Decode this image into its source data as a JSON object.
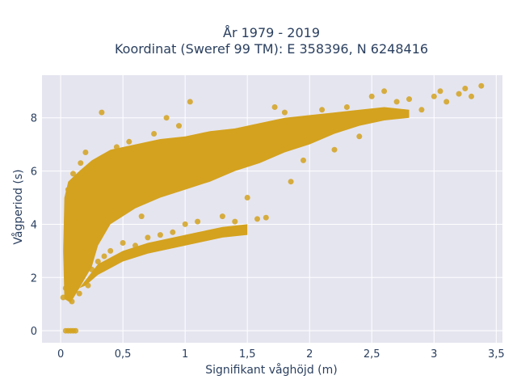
{
  "chart_data": {
    "type": "scatter",
    "title_line1": "År 1979 - 2019",
    "title_line2": "Koordinat (Sweref 99 TM): E 358396, N 6248416",
    "xlabel": "Signifikant våghöjd (m)",
    "ylabel": "Vågperiod (s)",
    "xlim": [
      -0.15,
      3.55
    ],
    "ylim": [
      -0.45,
      9.6
    ],
    "x_ticks": [
      0,
      0.5,
      1,
      1.5,
      2,
      2.5,
      3,
      3.5
    ],
    "x_tick_labels": [
      "0",
      "0,5",
      "1",
      "1,5",
      "2",
      "2,5",
      "3",
      "3,5"
    ],
    "y_ticks": [
      0,
      2,
      4,
      6,
      8
    ],
    "y_tick_labels": [
      "0",
      "2",
      "4",
      "6",
      "8"
    ],
    "grid": true,
    "background": "#e5e5f0",
    "marker_color": "#d4a21e",
    "points": [
      {
        "x": 0.02,
        "y": 1.25
      },
      {
        "x": 0.04,
        "y": 1.6
      },
      {
        "x": 0.06,
        "y": 2.2
      },
      {
        "x": 0.05,
        "y": 3.0
      },
      {
        "x": 0.07,
        "y": 3.8
      },
      {
        "x": 0.08,
        "y": 4.6
      },
      {
        "x": 0.06,
        "y": 5.3
      },
      {
        "x": 0.1,
        "y": 5.9
      },
      {
        "x": 0.09,
        "y": 1.1
      },
      {
        "x": 0.15,
        "y": 1.4
      },
      {
        "x": 0.12,
        "y": 2.6
      },
      {
        "x": 0.14,
        "y": 4.2
      },
      {
        "x": 0.16,
        "y": 6.3
      },
      {
        "x": 0.2,
        "y": 6.7
      },
      {
        "x": 0.22,
        "y": 1.7
      },
      {
        "x": 0.25,
        "y": 2.3
      },
      {
        "x": 0.28,
        "y": 5.0
      },
      {
        "x": 0.3,
        "y": 2.6
      },
      {
        "x": 0.35,
        "y": 2.8
      },
      {
        "x": 0.33,
        "y": 8.2
      },
      {
        "x": 0.4,
        "y": 3.0
      },
      {
        "x": 0.45,
        "y": 6.9
      },
      {
        "x": 0.5,
        "y": 3.3
      },
      {
        "x": 0.55,
        "y": 7.1
      },
      {
        "x": 0.6,
        "y": 3.2
      },
      {
        "x": 0.65,
        "y": 4.3
      },
      {
        "x": 0.7,
        "y": 3.5
      },
      {
        "x": 0.75,
        "y": 7.4
      },
      {
        "x": 0.8,
        "y": 3.6
      },
      {
        "x": 0.85,
        "y": 8.0
      },
      {
        "x": 0.9,
        "y": 3.7
      },
      {
        "x": 0.95,
        "y": 7.7
      },
      {
        "x": 1.0,
        "y": 4.0
      },
      {
        "x": 1.04,
        "y": 8.6
      },
      {
        "x": 1.1,
        "y": 4.1
      },
      {
        "x": 1.2,
        "y": 3.6
      },
      {
        "x": 1.3,
        "y": 4.3
      },
      {
        "x": 1.4,
        "y": 4.1
      },
      {
        "x": 1.5,
        "y": 5.0
      },
      {
        "x": 1.58,
        "y": 4.2
      },
      {
        "x": 1.65,
        "y": 4.25
      },
      {
        "x": 1.72,
        "y": 8.4
      },
      {
        "x": 1.8,
        "y": 8.2
      },
      {
        "x": 1.85,
        "y": 5.6
      },
      {
        "x": 1.95,
        "y": 6.4
      },
      {
        "x": 2.1,
        "y": 8.3
      },
      {
        "x": 2.2,
        "y": 6.8
      },
      {
        "x": 2.3,
        "y": 8.4
      },
      {
        "x": 2.4,
        "y": 7.3
      },
      {
        "x": 2.5,
        "y": 8.8
      },
      {
        "x": 2.6,
        "y": 9.0
      },
      {
        "x": 2.7,
        "y": 8.6
      },
      {
        "x": 2.8,
        "y": 8.7
      },
      {
        "x": 2.9,
        "y": 8.3
      },
      {
        "x": 3.0,
        "y": 8.8
      },
      {
        "x": 3.05,
        "y": 9.0
      },
      {
        "x": 3.1,
        "y": 8.6
      },
      {
        "x": 3.2,
        "y": 8.9
      },
      {
        "x": 3.25,
        "y": 9.1
      },
      {
        "x": 3.3,
        "y": 8.8
      },
      {
        "x": 3.38,
        "y": 9.2
      },
      {
        "x": 0.04,
        "y": 0.0
      },
      {
        "x": 0.06,
        "y": 0.0
      },
      {
        "x": 0.08,
        "y": 0.0
      },
      {
        "x": 0.1,
        "y": 0.0
      },
      {
        "x": 0.12,
        "y": 0.0
      }
    ]
  }
}
